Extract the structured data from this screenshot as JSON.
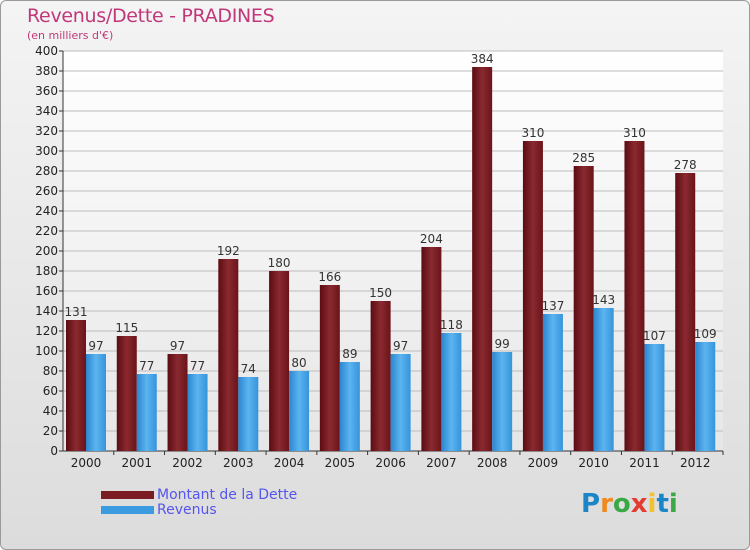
{
  "chart_data": {
    "type": "bar",
    "title": "Revenus/Dette - PRADINES",
    "subtitle": "(en milliers d'€)",
    "categories": [
      "2000",
      "2001",
      "2002",
      "2003",
      "2004",
      "2005",
      "2006",
      "2007",
      "2008",
      "2009",
      "2010",
      "2011",
      "2012"
    ],
    "series": [
      {
        "name": "Montant de la Dette",
        "color": "#7a1c22",
        "values": [
          131,
          115,
          97,
          192,
          180,
          166,
          150,
          204,
          384,
          310,
          285,
          310,
          278
        ]
      },
      {
        "name": "Revenus",
        "color": "#3a9be0",
        "values": [
          97,
          77,
          77,
          74,
          80,
          89,
          97,
          118,
          99,
          137,
          143,
          107,
          109
        ]
      }
    ],
    "ylim": [
      0,
      400
    ],
    "ytick_step": 20,
    "xlabel": "",
    "ylabel": "",
    "grid": true,
    "legend_position": "bottom-left"
  },
  "logo": {
    "letters": [
      {
        "ch": "P",
        "color": "#1a86c8"
      },
      {
        "ch": "r",
        "color": "#f08a1e"
      },
      {
        "ch": "o",
        "color": "#3aa845"
      },
      {
        "ch": "x",
        "color": "#e43d30"
      },
      {
        "ch": "i",
        "color": "#f2c12e"
      },
      {
        "ch": "t",
        "color": "#1a86c8"
      },
      {
        "ch": "i",
        "color": "#3aa845"
      }
    ]
  }
}
